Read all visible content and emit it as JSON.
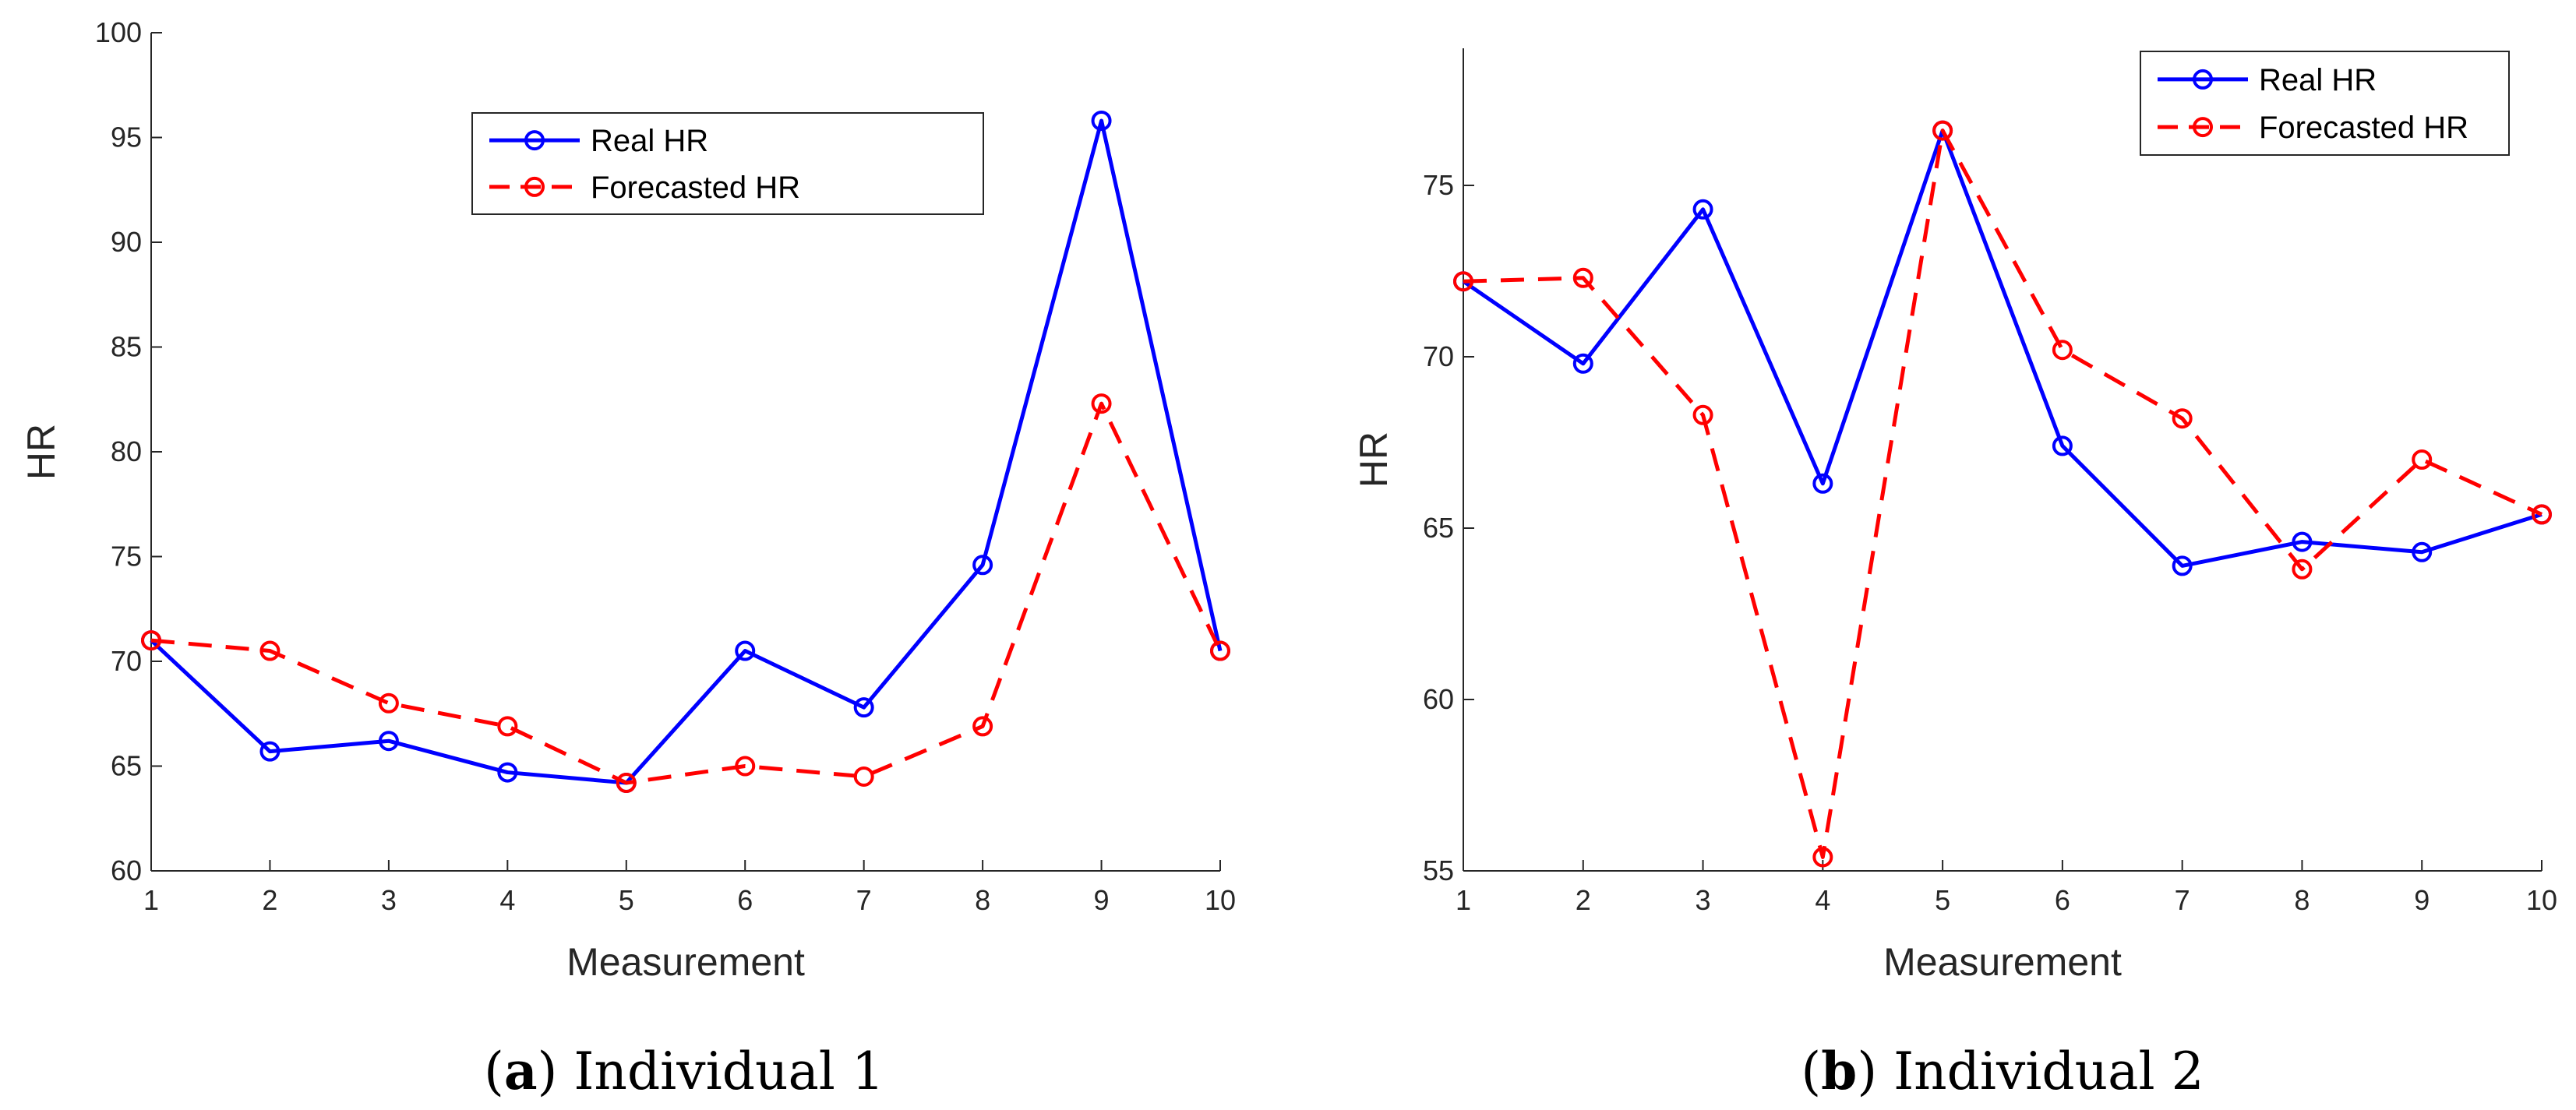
{
  "chart_data": [
    {
      "id": "a",
      "type": "line",
      "caption_letter": "a",
      "caption_text": "Individual 1",
      "xlabel": "Measurement",
      "ylabel": "HR",
      "x": [
        1,
        2,
        3,
        4,
        5,
        6,
        7,
        8,
        9,
        10
      ],
      "xlim": [
        1,
        10
      ],
      "ylim": [
        60,
        100
      ],
      "xticks": [
        1,
        2,
        3,
        4,
        5,
        6,
        7,
        8,
        9,
        10
      ],
      "yticks": [
        60,
        65,
        70,
        75,
        80,
        85,
        90,
        95,
        100
      ],
      "legend_position": "top-center",
      "series": [
        {
          "name": "Real HR",
          "color": "#0000ff",
          "style": "solid",
          "marker": "circle",
          "values": [
            71.0,
            65.7,
            66.2,
            64.7,
            64.2,
            70.5,
            67.8,
            74.6,
            95.8,
            70.5
          ]
        },
        {
          "name": "Forecasted HR",
          "color": "#ff0000",
          "style": "dashed",
          "marker": "circle",
          "values": [
            71.0,
            70.5,
            68.0,
            66.9,
            64.2,
            65.0,
            64.5,
            66.9,
            82.3,
            70.5
          ]
        }
      ]
    },
    {
      "id": "b",
      "type": "line",
      "caption_letter": "b",
      "caption_text": "Individual 2",
      "xlabel": "Measurement",
      "ylabel": "HR",
      "x": [
        1,
        2,
        3,
        4,
        5,
        6,
        7,
        8,
        9,
        10
      ],
      "xlim": [
        1,
        10
      ],
      "ylim": [
        55,
        79
      ],
      "xticks": [
        1,
        2,
        3,
        4,
        5,
        6,
        7,
        8,
        9,
        10
      ],
      "yticks": [
        55,
        60,
        65,
        70,
        75
      ],
      "legend_position": "top-right",
      "series": [
        {
          "name": "Real HR",
          "color": "#0000ff",
          "style": "solid",
          "marker": "circle",
          "values": [
            72.2,
            69.8,
            74.3,
            66.3,
            76.6,
            67.4,
            63.9,
            64.6,
            64.3,
            65.4
          ]
        },
        {
          "name": "Forecasted HR",
          "color": "#ff0000",
          "style": "dashed",
          "marker": "circle",
          "values": [
            72.2,
            72.3,
            68.3,
            55.4,
            76.6,
            70.2,
            68.2,
            63.8,
            67.0,
            65.4
          ]
        }
      ]
    }
  ]
}
